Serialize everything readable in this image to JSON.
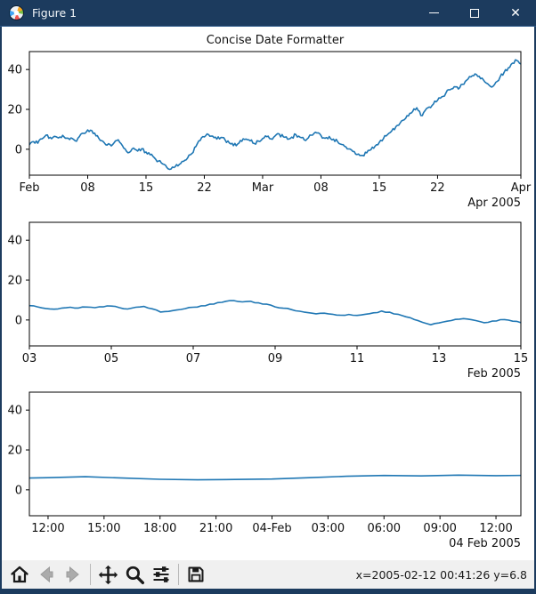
{
  "window": {
    "title": "Figure 1",
    "controls": {
      "minimize": "minimize",
      "maximize": "maximize",
      "close": "✕"
    }
  },
  "toolbar": {
    "tools": [
      "home",
      "back",
      "forward",
      "pan",
      "zoom-to-rect",
      "configure-subplots",
      "save"
    ],
    "status": "x=2005-02-12 00:41:26 y=6.8"
  },
  "colors": {
    "titlebar": "#1c3b5e",
    "line": "#1f77b4",
    "toolbar_bg": "#f0f0f0",
    "canvas_bg": "#ffffff",
    "icon": "#1a1a1a",
    "icon_disabled": "#a9a9a9"
  },
  "chart_data": [
    {
      "type": "line",
      "title": "Concise Date Formatter",
      "xlim": [
        0,
        59
      ],
      "ylim": [
        -13,
        49
      ],
      "x_start": 0,
      "x_step": 0.5,
      "subdiv": 3,
      "noise": 0.9,
      "seed": 42,
      "xticks": [
        {
          "pos": 0,
          "label": "Feb"
        },
        {
          "pos": 7,
          "label": "08"
        },
        {
          "pos": 14,
          "label": "15"
        },
        {
          "pos": 21,
          "label": "22"
        },
        {
          "pos": 28,
          "label": "Mar"
        },
        {
          "pos": 35,
          "label": "08"
        },
        {
          "pos": 42,
          "label": "15"
        },
        {
          "pos": 49,
          "label": "22"
        },
        {
          "pos": 59,
          "label": "Apr"
        }
      ],
      "yticks": [
        0,
        20,
        40
      ],
      "offset": "Apr 2005",
      "values": [
        2.2,
        3.8,
        3.0,
        5.2,
        7.1,
        6.0,
        6.5,
        5.7,
        7.0,
        5.6,
        5.7,
        4.2,
        6.3,
        8.0,
        9.7,
        9.3,
        6.7,
        4.5,
        3.2,
        2.8,
        2.4,
        4.4,
        2.9,
        0.1,
        -1.6,
        0.6,
        -0.9,
        0.3,
        -1.4,
        -2.8,
        -4.2,
        -5.9,
        -7.4,
        -9.1,
        -9.9,
        -8.8,
        -7.6,
        -6.1,
        -4.3,
        -2.2,
        1.4,
        4.4,
        6.2,
        7.4,
        6.6,
        5.1,
        5.9,
        4.6,
        3.2,
        1.8,
        2.6,
        4.0,
        5.1,
        4.2,
        2.9,
        4.1,
        5.4,
        6.3,
        5.2,
        6.7,
        7.6,
        6.2,
        5.0,
        6.1,
        7.3,
        6.0,
        4.7,
        5.8,
        7.1,
        8.2,
        6.9,
        5.5,
        6.4,
        5.1,
        3.8,
        2.4,
        1.2,
        0.1,
        -1.2,
        -2.4,
        -3.1,
        -1.8,
        -0.2,
        1.6,
        3.4,
        5.3,
        7.4,
        9.2,
        11.4,
        13.1,
        14.8,
        16.7,
        18.9,
        20.8,
        16.9,
        19.4,
        21.2,
        22.7,
        24.5,
        26.3,
        28.2,
        29.8,
        31.4,
        30.2,
        32.6,
        34.7,
        36.3,
        37.8,
        36.6,
        34.8,
        32.9,
        31.2,
        33.6,
        36.2,
        38.7,
        40.9,
        43.2,
        44.6,
        42.8
      ]
    },
    {
      "type": "line",
      "title": "",
      "xlim": [
        3,
        15
      ],
      "ylim": [
        -13,
        49
      ],
      "x_start": 3,
      "x_step": 0.2,
      "subdiv": 2,
      "noise": 0.4,
      "seed": 77,
      "xticks": [
        {
          "pos": 3,
          "label": "03"
        },
        {
          "pos": 5,
          "label": "05"
        },
        {
          "pos": 7,
          "label": "07"
        },
        {
          "pos": 9,
          "label": "09"
        },
        {
          "pos": 11,
          "label": "11"
        },
        {
          "pos": 13,
          "label": "13"
        },
        {
          "pos": 15,
          "label": "15"
        }
      ],
      "yticks": [
        0,
        20,
        40
      ],
      "offset": "Feb 2005",
      "values": [
        7.2,
        6.6,
        5.8,
        5.4,
        6.0,
        6.4,
        6.0,
        6.5,
        6.2,
        6.6,
        7.0,
        6.2,
        5.5,
        6.4,
        6.8,
        5.6,
        4.0,
        4.3,
        5.0,
        5.7,
        6.4,
        7.1,
        7.9,
        8.7,
        9.4,
        9.7,
        9.1,
        9.4,
        8.6,
        7.9,
        6.6,
        5.9,
        5.2,
        4.4,
        3.7,
        3.1,
        3.4,
        2.9,
        2.4,
        2.8,
        2.3,
        2.9,
        3.6,
        4.5,
        3.9,
        2.9,
        1.6,
        0.2,
        -1.2,
        -2.4,
        -1.5,
        -0.6,
        0.3,
        0.7,
        0.1,
        -0.8,
        -1.2,
        -0.5,
        0.2,
        -0.6,
        -1.3
      ]
    },
    {
      "type": "line",
      "title": "",
      "xlim": [
        11,
        37.3333
      ],
      "ylim": [
        -13,
        49
      ],
      "x_start": 10,
      "x_step": 2,
      "subdiv": 1,
      "noise": 0,
      "seed": 5,
      "xticks": [
        {
          "pos": 12,
          "label": "12:00"
        },
        {
          "pos": 15,
          "label": "15:00"
        },
        {
          "pos": 18,
          "label": "18:00"
        },
        {
          "pos": 21,
          "label": "21:00"
        },
        {
          "pos": 24,
          "label": "04-Feb"
        },
        {
          "pos": 27,
          "label": "03:00"
        },
        {
          "pos": 30,
          "label": "06:00"
        },
        {
          "pos": 33,
          "label": "09:00"
        },
        {
          "pos": 36,
          "label": "12:00"
        }
      ],
      "yticks": [
        0,
        20,
        40
      ],
      "offset": "04 Feb 2005",
      "values": [
        5.8,
        6.1,
        6.6,
        5.9,
        5.3,
        5.0,
        5.2,
        5.4,
        6.1,
        6.8,
        7.2,
        7.0,
        7.4,
        7.1,
        7.3
      ]
    }
  ]
}
